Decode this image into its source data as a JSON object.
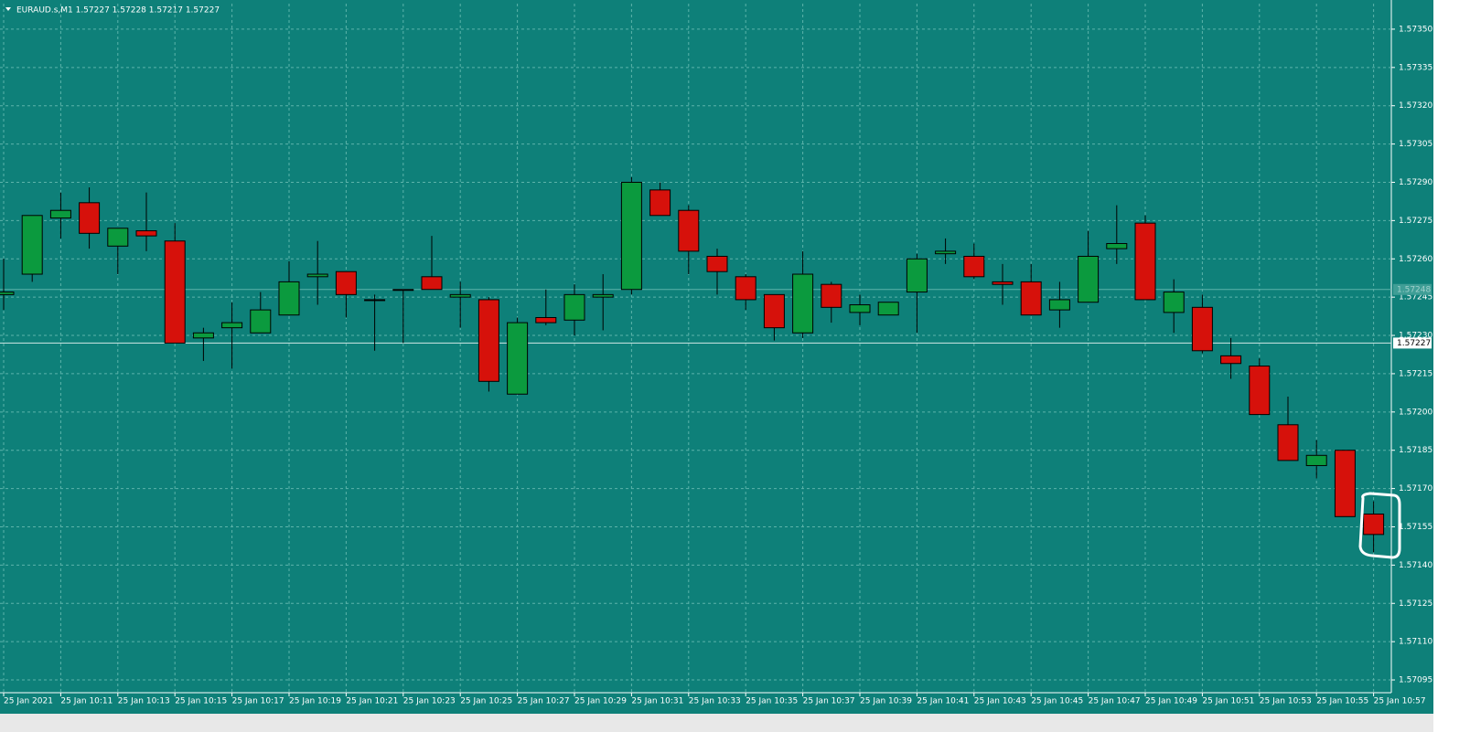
{
  "chart_data": {
    "type": "candlestick",
    "header": "EURAUD.s,M1  1.57227 1.57228 1.57217 1.57227",
    "categories": [
      "25 Jan 2021",
      null,
      "25 Jan 10:11",
      null,
      "25 Jan 10:13",
      null,
      "25 Jan 10:15",
      null,
      "25 Jan 10:17",
      null,
      "25 Jan 10:19",
      null,
      "25 Jan 10:21",
      null,
      "25 Jan 10:23",
      null,
      "25 Jan 10:25",
      null,
      "25 Jan 10:27",
      null,
      "25 Jan 10:29",
      null,
      "25 Jan 10:31",
      null,
      "25 Jan 10:33",
      null,
      "25 Jan 10:35",
      null,
      "25 Jan 10:37",
      null,
      "25 Jan 10:39",
      null,
      "25 Jan 10:41",
      null,
      "25 Jan 10:43",
      null,
      "25 Jan 10:45",
      null,
      "25 Jan 10:47",
      null,
      "25 Jan 10:49",
      null,
      "25 Jan 10:51",
      null,
      "25 Jan 10:53",
      null,
      "25 Jan 10:55",
      null,
      "25 Jan 10:57"
    ],
    "open": [
      1.57246,
      1.57254,
      1.57276,
      1.57282,
      1.57265,
      1.57271,
      1.57267,
      1.57229,
      1.57233,
      1.57231,
      1.57238,
      1.57253,
      1.57255,
      1.57244,
      1.57248,
      1.57253,
      1.57245,
      1.57244,
      1.57207,
      1.57237,
      1.57236,
      1.57245,
      1.57248,
      1.57287,
      1.57279,
      1.57261,
      1.57253,
      1.57246,
      1.57231,
      1.5725,
      1.57239,
      1.57238,
      1.57247,
      1.57262,
      1.57261,
      1.57251,
      1.57251,
      1.5724,
      1.57243,
      1.57264,
      1.57274,
      1.57239,
      1.57241,
      1.57222,
      1.57218,
      1.57195,
      1.57179,
      1.57185,
      1.5716
    ],
    "high": [
      1.5726,
      1.57277,
      1.57286,
      1.57288,
      1.57272,
      1.57286,
      1.57274,
      1.57233,
      1.57243,
      1.57247,
      1.57259,
      1.57267,
      1.57255,
      1.57246,
      1.57248,
      1.57269,
      1.57251,
      1.57245,
      1.57237,
      1.57248,
      1.5725,
      1.57254,
      1.57292,
      1.5729,
      1.57281,
      1.57264,
      1.57254,
      1.57246,
      1.57263,
      1.57251,
      1.57246,
      1.57243,
      1.57262,
      1.57268,
      1.57266,
      1.57258,
      1.57258,
      1.57251,
      1.57271,
      1.57281,
      1.57277,
      1.57252,
      1.57246,
      1.57229,
      1.57221,
      1.57206,
      1.57189,
      1.57185,
      1.57165
    ],
    "low": [
      1.5724,
      1.57251,
      1.57268,
      1.57264,
      1.57254,
      1.57263,
      1.57227,
      1.5722,
      1.57217,
      1.57231,
      1.57238,
      1.57242,
      1.57237,
      1.57224,
      1.57227,
      1.57248,
      1.57233,
      1.57208,
      1.57207,
      1.57234,
      1.5723,
      1.57232,
      1.57246,
      1.57277,
      1.57254,
      1.57246,
      1.5724,
      1.57228,
      1.57229,
      1.57235,
      1.57234,
      1.57238,
      1.57231,
      1.57258,
      1.57252,
      1.57242,
      1.57238,
      1.57233,
      1.57243,
      1.57258,
      1.57244,
      1.57231,
      1.57223,
      1.57213,
      1.57199,
      1.57181,
      1.57174,
      1.57159,
      1.57145
    ],
    "close": [
      1.57247,
      1.57277,
      1.57279,
      1.5727,
      1.57272,
      1.57269,
      1.57227,
      1.57231,
      1.57235,
      1.5724,
      1.57251,
      1.57254,
      1.57246,
      1.57244,
      1.57248,
      1.57248,
      1.57246,
      1.57212,
      1.57235,
      1.57235,
      1.57246,
      1.57246,
      1.5729,
      1.57277,
      1.57263,
      1.57255,
      1.57244,
      1.57233,
      1.57254,
      1.57241,
      1.57242,
      1.57243,
      1.5726,
      1.57263,
      1.57253,
      1.5725,
      1.57238,
      1.57244,
      1.57261,
      1.57266,
      1.57244,
      1.57247,
      1.57224,
      1.57219,
      1.57199,
      1.57181,
      1.57183,
      1.57159,
      1.57152
    ],
    "up_color": "#0b9a3e",
    "down_color": "#d6110b",
    "background": "#0e8079",
    "grid": true,
    "ylim": [
      1.5709,
      1.5736
    ],
    "yticks": [
      {
        "value": 1.5735,
        "label": "1.57350"
      },
      {
        "value": 1.57335,
        "label": "1.57335"
      },
      {
        "value": 1.5732,
        "label": "1.57320"
      },
      {
        "value": 1.57305,
        "label": "1.57305"
      },
      {
        "value": 1.5729,
        "label": "1.57290"
      },
      {
        "value": 1.57275,
        "label": "1.57275"
      },
      {
        "value": 1.5726,
        "label": "1.57260"
      },
      {
        "value": 1.57245,
        "label": "1.57245"
      },
      {
        "value": 1.5723,
        "label": "1.57230"
      },
      {
        "value": 1.57215,
        "label": "1.57215"
      },
      {
        "value": 1.572,
        "label": "1.57200"
      },
      {
        "value": 1.57185,
        "label": "1.57185"
      },
      {
        "value": 1.5717,
        "label": "1.57170"
      },
      {
        "value": 1.57155,
        "label": "1.57155"
      },
      {
        "value": 1.5714,
        "label": "1.57140"
      },
      {
        "value": 1.57125,
        "label": "1.57125"
      },
      {
        "value": 1.5711,
        "label": "1.57110"
      },
      {
        "value": 1.57095,
        "label": "1.57095"
      }
    ],
    "price_lines": [
      {
        "value": 1.57248,
        "label": "1.57248"
      },
      {
        "value": 1.57227,
        "label": "1.57227"
      }
    ]
  }
}
